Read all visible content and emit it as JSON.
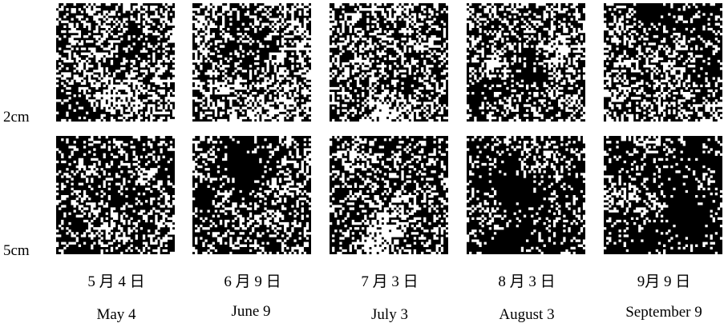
{
  "row_labels": [
    "2cm",
    "5cm"
  ],
  "columns": [
    {
      "date_cn": "5 月 4 日",
      "date_en": "May 4"
    },
    {
      "date_cn": "6 月 9 日",
      "date_en": "June 9"
    },
    {
      "date_cn": "7 月 3 日",
      "date_en": "July 3"
    },
    {
      "date_cn": "8 月 3 日",
      "date_en": "August 3"
    },
    {
      "date_cn": "9月 9 日",
      "date_en": "September 9"
    }
  ],
  "tile_colors": {
    "foreground": "#ffffff",
    "background": "#000000"
  }
}
